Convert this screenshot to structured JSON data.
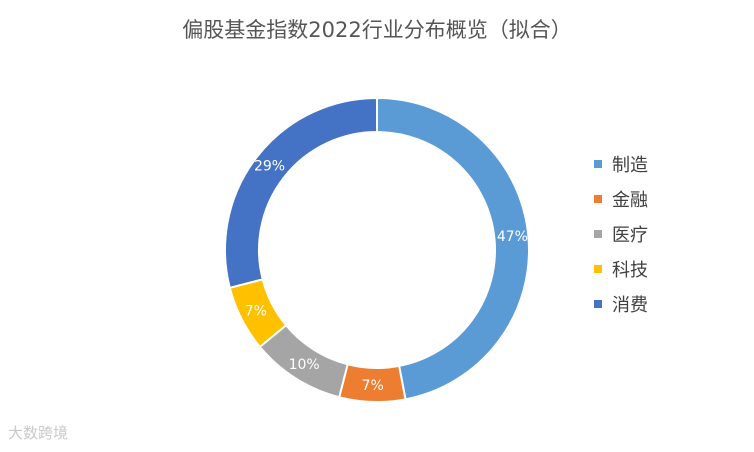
{
  "chart_data": {
    "type": "pie",
    "title": "偏股基金指数2022行业分布概览（拟合）",
    "categories": [
      "制造",
      "金融",
      "医疗",
      "科技",
      "消费"
    ],
    "values": [
      47,
      7,
      10,
      7,
      29
    ],
    "labels": [
      "47%",
      "7%",
      "10%",
      "7%",
      "29%"
    ],
    "colors": [
      "#5B9BD5",
      "#ED7D31",
      "#A5A5A5",
      "#FFC000",
      "#4472C4"
    ],
    "legend_position": "right"
  },
  "watermark": "大数跨境"
}
